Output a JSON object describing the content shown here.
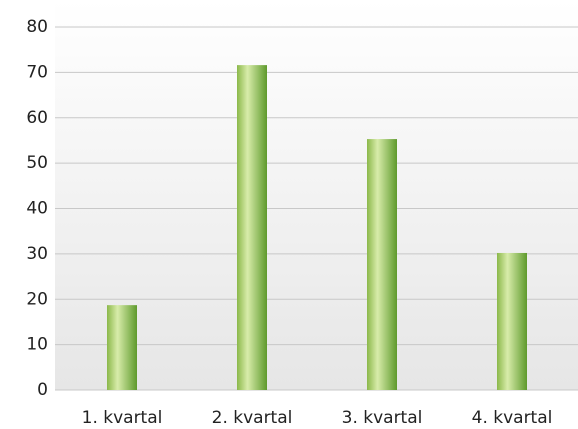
{
  "chart_data": {
    "type": "bar",
    "categories": [
      "1. kvartal",
      "2. kvartal",
      "3. kvartal",
      "4. kvartal"
    ],
    "values": [
      18.7,
      71.6,
      55.3,
      30.2
    ],
    "color": "#7cb342",
    "ylim": [
      0,
      80
    ],
    "yticks": [
      0,
      10,
      20,
      30,
      40,
      50,
      60,
      70,
      80
    ],
    "grid": true
  }
}
